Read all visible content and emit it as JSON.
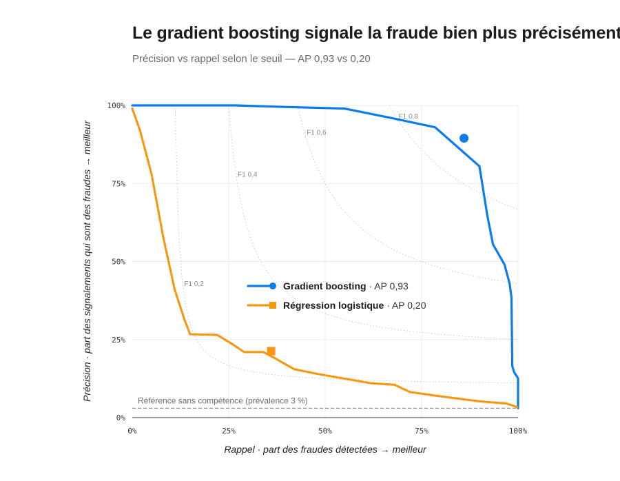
{
  "header": {
    "title": "Le gradient boosting signale la fraude bien plus précisément",
    "subtitle": "Précision vs rappel selon le seuil — AP 0,93 vs 0,20"
  },
  "chart_data": {
    "type": "line",
    "xlabel": "Rappel · part des fraudes détectées → meilleur",
    "ylabel": "Précision · part des signalements qui sont des fraudes → meilleur",
    "xlim": [
      0,
      1
    ],
    "ylim": [
      0,
      1
    ],
    "x_ticks": [
      "0%",
      "25%",
      "50%",
      "75%",
      "100%"
    ],
    "y_ticks": [
      "0%",
      "25%",
      "50%",
      "75%",
      "100%"
    ],
    "grid": true,
    "legend_position": "center",
    "iso_f1": [
      {
        "f1": 0.2,
        "label": "F1 0,2"
      },
      {
        "f1": 0.4,
        "label": "F1 0,4"
      },
      {
        "f1": 0.6,
        "label": "F1 0,6"
      },
      {
        "f1": 0.8,
        "label": "F1 0,8"
      }
    ],
    "baseline": {
      "value": 0.03,
      "label": "Référence sans compétence (prévalence 3 %)"
    },
    "series": [
      {
        "name": "Gradient boosting",
        "ap_label": " · AP 0,93",
        "color": "#0a7cf0",
        "marker": "circle",
        "operating_point": {
          "recall": 0.86,
          "precision": 0.895
        },
        "points": [
          [
            0,
            1.0
          ],
          [
            0.1,
            1.0
          ],
          [
            0.27,
            1.0
          ],
          [
            0.4,
            0.995
          ],
          [
            0.55,
            0.99
          ],
          [
            0.67,
            0.96
          ],
          [
            0.785,
            0.93
          ],
          [
            0.9,
            0.805
          ],
          [
            0.92,
            0.65
          ],
          [
            0.935,
            0.555
          ],
          [
            0.965,
            0.49
          ],
          [
            0.978,
            0.43
          ],
          [
            0.983,
            0.385
          ],
          [
            0.985,
            0.165
          ],
          [
            0.99,
            0.145
          ],
          [
            0.998,
            0.13
          ],
          [
            1.0,
            0.125
          ],
          [
            1.0,
            0.03
          ]
        ]
      },
      {
        "name": "Régression logistique",
        "ap_label": " · AP 0,20",
        "color": "#f7960f",
        "marker": "square",
        "operating_point": {
          "recall": 0.36,
          "precision": 0.213
        },
        "points": [
          [
            0,
            0.99
          ],
          [
            0.02,
            0.92
          ],
          [
            0.05,
            0.78
          ],
          [
            0.08,
            0.58
          ],
          [
            0.11,
            0.41
          ],
          [
            0.135,
            0.315
          ],
          [
            0.15,
            0.267
          ],
          [
            0.22,
            0.265
          ],
          [
            0.26,
            0.235
          ],
          [
            0.29,
            0.21
          ],
          [
            0.34,
            0.21
          ],
          [
            0.37,
            0.19
          ],
          [
            0.42,
            0.155
          ],
          [
            0.48,
            0.14
          ],
          [
            0.55,
            0.125
          ],
          [
            0.62,
            0.11
          ],
          [
            0.68,
            0.105
          ],
          [
            0.72,
            0.082
          ],
          [
            0.8,
            0.068
          ],
          [
            0.9,
            0.052
          ],
          [
            0.97,
            0.045
          ],
          [
            1.0,
            0.033
          ]
        ]
      }
    ]
  }
}
